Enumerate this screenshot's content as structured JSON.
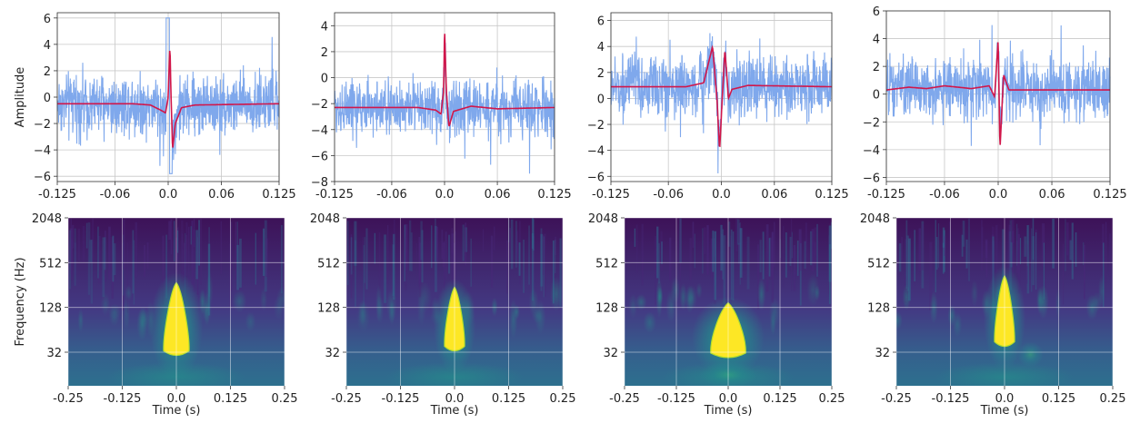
{
  "chart_data": {
    "type": "line",
    "description_layout": "2 rows x 4 columns",
    "colors": {
      "noise": "#7fa8ec",
      "signal": "#d1164a",
      "spec_low": "#440154",
      "spec_high": "#fde725"
    },
    "waveforms": [
      {
        "ylabel": "Amplitude",
        "xlim": [
          -0.125,
          0.125
        ],
        "ylim": [
          -6.4,
          6.4
        ],
        "xticks": [
          "-0.125",
          "-0.06",
          "0.0",
          "0.06",
          "0.125"
        ],
        "yticks": [
          {
            "v": -6,
            "label": "−6"
          },
          {
            "v": -4,
            "label": "−4"
          },
          {
            "v": -2,
            "label": "−2"
          },
          {
            "v": 0,
            "label": "0"
          },
          {
            "v": 2,
            "label": "2"
          },
          {
            "v": 4,
            "label": "4"
          },
          {
            "v": 6,
            "label": "6"
          }
        ],
        "baseline": -0.5,
        "noise_amp": 1.2,
        "signal": [
          [
            -0.125,
            -0.5
          ],
          [
            -0.04,
            -0.5
          ],
          [
            -0.02,
            -0.6
          ],
          [
            -0.008,
            -1.0
          ],
          [
            -0.003,
            -1.2
          ],
          [
            0,
            0
          ],
          [
            0.002,
            4.0
          ],
          [
            0.003,
            0.5
          ],
          [
            0.005,
            -4.0
          ],
          [
            0.008,
            -2.0
          ],
          [
            0.015,
            -0.8
          ],
          [
            0.03,
            -0.6
          ],
          [
            0.125,
            -0.5
          ]
        ],
        "noise_min": -5.8,
        "noise_max": 6.0
      },
      {
        "ylabel": "",
        "xlim": [
          -0.125,
          0.125
        ],
        "ylim": [
          -8.0,
          5.0
        ],
        "xticks": [
          "-0.125",
          "-0.06",
          "0.0",
          "0.06",
          "0.125"
        ],
        "yticks": [
          {
            "v": -8,
            "label": "−8"
          },
          {
            "v": -6,
            "label": "−6"
          },
          {
            "v": -4,
            "label": "−4"
          },
          {
            "v": -2,
            "label": "−2"
          },
          {
            "v": 0,
            "label": "0"
          },
          {
            "v": 2,
            "label": "2"
          },
          {
            "v": 4,
            "label": "4"
          }
        ],
        "baseline": -2.3,
        "noise_amp": 1.1,
        "signal": [
          [
            -0.125,
            -2.3
          ],
          [
            -0.03,
            -2.3
          ],
          [
            -0.01,
            -2.5
          ],
          [
            -0.004,
            -2.8
          ],
          [
            -0.001,
            -1.0
          ],
          [
            0,
            4.0
          ],
          [
            0.002,
            -1.0
          ],
          [
            0.005,
            -3.8
          ],
          [
            0.01,
            -2.6
          ],
          [
            0.03,
            -2.2
          ],
          [
            0.06,
            -2.4
          ],
          [
            0.125,
            -2.3
          ]
        ],
        "noise_min": -7.5,
        "noise_max": 4.9
      },
      {
        "ylabel": "",
        "xlim": [
          -0.125,
          0.125
        ],
        "ylim": [
          -6.4,
          6.6
        ],
        "xticks": [
          "-0.125",
          "-0.06",
          "0.0",
          "0.06",
          "0.125"
        ],
        "yticks": [
          {
            "v": -6,
            "label": "−6"
          },
          {
            "v": -4,
            "label": "−4"
          },
          {
            "v": -2,
            "label": "−2"
          },
          {
            "v": 0,
            "label": "0"
          },
          {
            "v": 2,
            "label": "2"
          },
          {
            "v": 4,
            "label": "4"
          },
          {
            "v": 6,
            "label": "6"
          }
        ],
        "baseline": 0.9,
        "noise_amp": 1.2,
        "signal": [
          [
            -0.125,
            0.9
          ],
          [
            -0.04,
            0.9
          ],
          [
            -0.02,
            1.2
          ],
          [
            -0.01,
            4.0
          ],
          [
            -0.005,
            0.0
          ],
          [
            -0.002,
            -4.0
          ],
          [
            0.001,
            0.0
          ],
          [
            0.004,
            3.8
          ],
          [
            0.008,
            0.0
          ],
          [
            0.012,
            0.7
          ],
          [
            0.03,
            1.0
          ],
          [
            0.125,
            0.9
          ]
        ],
        "noise_min": -6.0,
        "noise_max": 6.0
      },
      {
        "ylabel": "",
        "xlim": [
          -0.125,
          0.125
        ],
        "ylim": [
          -6.3,
          6.0
        ],
        "xticks": [
          "-0.125",
          "-0.06",
          "0.0",
          "0.06",
          "0.125"
        ],
        "yticks": [
          {
            "v": -6,
            "label": "−6"
          },
          {
            "v": -4,
            "label": "−4"
          },
          {
            "v": -2,
            "label": "−2"
          },
          {
            "v": 0,
            "label": "0"
          },
          {
            "v": 2,
            "label": "2"
          },
          {
            "v": 4,
            "label": "4"
          },
          {
            "v": 6,
            "label": "6"
          }
        ],
        "baseline": 0.3,
        "noise_amp": 1.1,
        "signal": [
          [
            -0.125,
            0.3
          ],
          [
            -0.1,
            0.5
          ],
          [
            -0.08,
            0.4
          ],
          [
            -0.06,
            0.6
          ],
          [
            -0.03,
            0.4
          ],
          [
            -0.01,
            0.6
          ],
          [
            -0.004,
            -0.2
          ],
          [
            0,
            4.0
          ],
          [
            0.002,
            -4.0
          ],
          [
            0.006,
            1.4
          ],
          [
            0.012,
            0.3
          ],
          [
            0.125,
            0.3
          ]
        ],
        "noise_min": -5.8,
        "noise_max": 5.8
      }
    ],
    "spectrograms": [
      {
        "ylabel": "Frequency (Hz)",
        "xlabel": "Time (s)",
        "xlim": [
          -0.25,
          0.25
        ],
        "ylim_log2": [
          3.5,
          11.0
        ],
        "xticks": [
          "-0.25",
          "-0.125",
          "0.0",
          "0.125",
          "0.25"
        ],
        "yticks": [
          "32",
          "128",
          "512",
          "2048"
        ],
        "blob": {
          "center_t": 0.0,
          "top_log2": 8.1,
          "bottom_log2": 4.9,
          "width": 0.028
        },
        "secondary": []
      },
      {
        "ylabel": "",
        "xlabel": "Time (s)",
        "xlim": [
          -0.25,
          0.25
        ],
        "ylim_log2": [
          3.5,
          11.0
        ],
        "xticks": [
          "-0.25",
          "-0.125",
          "0.0",
          "0.125",
          "0.25"
        ],
        "yticks": [
          "32",
          "128",
          "512",
          "2048"
        ],
        "blob": {
          "center_t": 0.0,
          "top_log2": 7.9,
          "bottom_log2": 5.1,
          "width": 0.022
        },
        "secondary": []
      },
      {
        "ylabel": "",
        "xlabel": "Time (s)",
        "xlim": [
          -0.25,
          0.25
        ],
        "ylim_log2": [
          3.5,
          11.0
        ],
        "xticks": [
          "-0.25",
          "-0.125",
          "0.0",
          "0.125",
          "0.25"
        ],
        "yticks": [
          "32",
          "128",
          "512",
          "2048"
        ],
        "blob": {
          "center_t": 0.0,
          "top_log2": 7.2,
          "bottom_log2": 4.8,
          "width": 0.04
        },
        "secondary": [
          [
            0.0,
            4.0,
            0.07,
            0.5
          ]
        ]
      },
      {
        "ylabel": "",
        "xlabel": "Time (s)",
        "xlim": [
          -0.25,
          0.25
        ],
        "ylim_log2": [
          3.5,
          11.0
        ],
        "xticks": [
          "-0.25",
          "-0.125",
          "0.0",
          "0.125",
          "0.25"
        ],
        "yticks": [
          "32",
          "128",
          "512",
          "2048"
        ],
        "blob": {
          "center_t": 0.0,
          "top_log2": 8.4,
          "bottom_log2": 5.3,
          "width": 0.022
        },
        "secondary": [
          [
            0.06,
            4.9,
            0.03,
            0.55
          ]
        ]
      }
    ]
  }
}
